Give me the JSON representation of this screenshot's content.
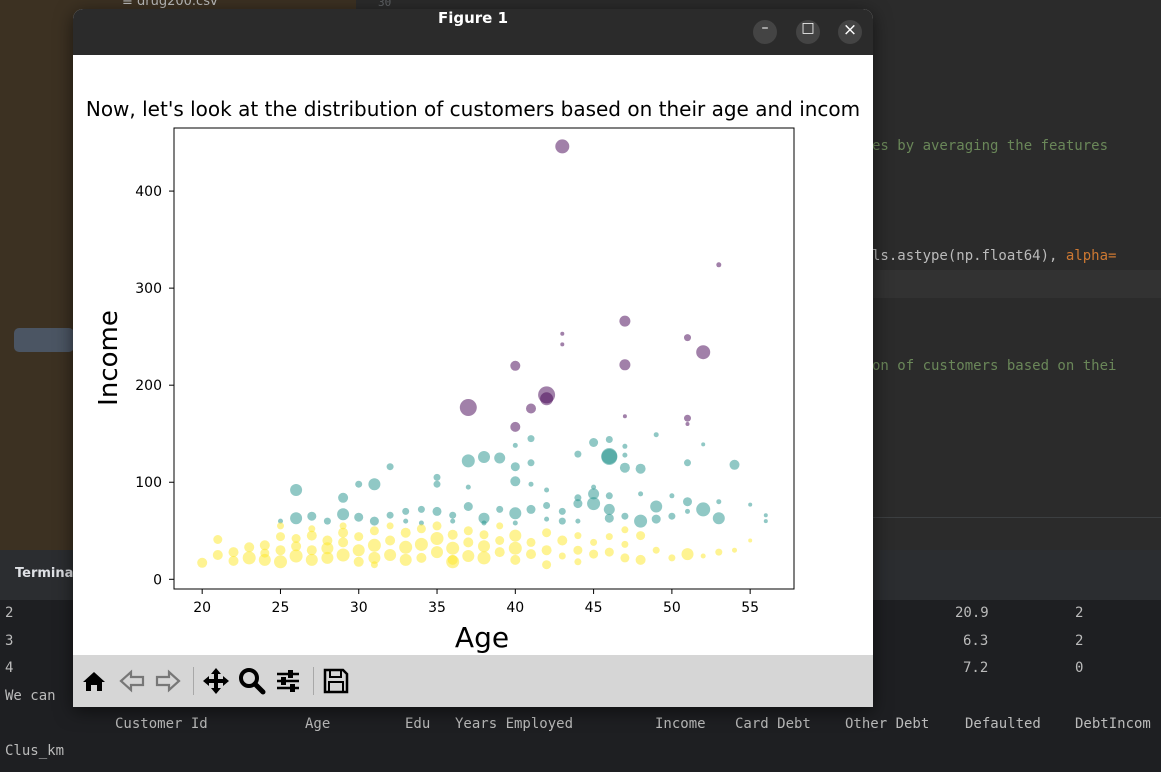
{
  "ide": {
    "project_file": "≡ drug200.csv",
    "gutter_number": "30",
    "code_lines": [
      {
        "text": "es by averaging the features",
        "kind": "comment"
      },
      {
        "text": "ls.astype(np.float64), ",
        "kind": "code",
        "tail": "alpha=",
        "tail_kind": "kw"
      },
      {
        "text": "on of customers based on thei",
        "kind": "comment"
      }
    ],
    "terminal": {
      "tab_label": "Termina",
      "rows": [
        {
          "index": "2",
          "income_debt": "20.9",
          "cluster": "2"
        },
        {
          "index": "3",
          "income_debt": "6.3",
          "cluster": "2"
        },
        {
          "index": "4",
          "income_debt": "7.2",
          "cluster": "0"
        }
      ],
      "note": "We can",
      "columns": [
        "Customer Id",
        "Age",
        "Edu",
        "Years Employed",
        "Income",
        "Card Debt",
        "Other Debt",
        "Defaulted",
        "DebtIncom"
      ],
      "last_line": "Clus_km"
    }
  },
  "window": {
    "title": "Figure 1",
    "minimize_glyph": "–",
    "maximize_glyph": "□",
    "close_glyph": "×"
  },
  "toolbar": {
    "icons": [
      "home-icon",
      "back-arrow-icon",
      "forward-arrow-icon",
      "pan-icon",
      "zoom-icon",
      "configure-subplots-icon",
      "save-icon"
    ]
  },
  "chart_data": {
    "type": "scatter",
    "title": "Now, let's look at the distribution of customers based on their age and incom",
    "xlabel": "Age",
    "ylabel": "Income",
    "xlim": [
      18.2,
      57.8
    ],
    "ylim": [
      -10,
      465
    ],
    "xticks": [
      20,
      25,
      30,
      35,
      40,
      45,
      50,
      55
    ],
    "yticks": [
      0,
      100,
      200,
      300,
      400
    ],
    "grid": false,
    "alpha": 0.5,
    "colors": {
      "0": "#fde725",
      "1": "#21918c",
      "2": "#440154"
    },
    "points": [
      [
        43,
        446,
        2,
        14
      ],
      [
        53,
        324,
        2,
        5
      ],
      [
        47,
        266,
        2,
        11
      ],
      [
        43,
        253,
        2,
        4
      ],
      [
        43,
        242,
        2,
        4
      ],
      [
        51,
        249,
        2,
        7
      ],
      [
        52,
        234,
        2,
        14
      ],
      [
        40,
        220,
        2,
        10
      ],
      [
        47,
        221,
        2,
        11
      ],
      [
        42,
        190,
        2,
        17
      ],
      [
        42,
        186,
        2,
        13
      ],
      [
        41,
        176,
        2,
        10
      ],
      [
        37,
        177,
        2,
        17
      ],
      [
        51,
        166,
        2,
        7
      ],
      [
        47,
        168,
        2,
        4
      ],
      [
        51,
        160,
        2,
        4
      ],
      [
        40,
        157,
        2,
        10
      ],
      [
        49,
        149,
        1,
        5
      ],
      [
        46,
        144,
        1,
        7
      ],
      [
        45,
        141,
        1,
        9
      ],
      [
        47,
        137,
        1,
        5
      ],
      [
        41,
        145,
        1,
        7
      ],
      [
        40,
        138,
        1,
        5
      ],
      [
        52,
        139,
        1,
        4
      ],
      [
        39,
        125,
        1,
        11
      ],
      [
        38,
        126,
        1,
        12
      ],
      [
        37,
        122,
        1,
        13
      ],
      [
        46,
        126,
        1,
        16
      ],
      [
        44,
        129,
        1,
        7
      ],
      [
        47,
        128,
        1,
        5
      ],
      [
        40,
        116,
        1,
        9
      ],
      [
        41,
        120,
        1,
        7
      ],
      [
        47,
        115,
        1,
        10
      ],
      [
        48,
        114,
        1,
        10
      ],
      [
        51,
        120,
        1,
        7
      ],
      [
        54,
        118,
        1,
        10
      ],
      [
        32,
        116,
        1,
        7
      ],
      [
        31,
        98,
        1,
        12
      ],
      [
        26,
        92,
        1,
        12
      ],
      [
        29,
        84,
        1,
        10
      ],
      [
        30,
        98,
        1,
        7
      ],
      [
        35,
        105,
        1,
        7
      ],
      [
        35,
        98,
        1,
        7
      ],
      [
        37,
        95,
        1,
        5
      ],
      [
        40,
        101,
        1,
        10
      ],
      [
        41,
        98,
        1,
        5
      ],
      [
        42,
        92,
        1,
        5
      ],
      [
        44,
        84,
        1,
        7
      ],
      [
        45,
        88,
        1,
        11
      ],
      [
        45,
        95,
        1,
        5
      ],
      [
        46,
        86,
        1,
        7
      ],
      [
        48,
        88,
        1,
        5
      ],
      [
        50,
        86,
        1,
        5
      ],
      [
        51,
        80,
        1,
        9
      ],
      [
        53,
        80,
        1,
        5
      ],
      [
        55,
        77,
        1,
        4
      ],
      [
        52,
        72,
        1,
        14
      ],
      [
        53,
        63,
        1,
        12
      ],
      [
        49,
        75,
        1,
        12
      ],
      [
        48,
        60,
        1,
        13
      ],
      [
        46,
        72,
        1,
        11
      ],
      [
        45,
        78,
        1,
        13
      ],
      [
        44,
        78,
        1,
        9
      ],
      [
        43,
        70,
        1,
        7
      ],
      [
        42,
        76,
        1,
        7
      ],
      [
        41,
        72,
        1,
        9
      ],
      [
        40,
        68,
        1,
        12
      ],
      [
        39,
        72,
        1,
        7
      ],
      [
        38,
        63,
        1,
        11
      ],
      [
        37,
        75,
        1,
        9
      ],
      [
        36,
        66,
        1,
        7
      ],
      [
        35,
        70,
        1,
        9
      ],
      [
        34,
        72,
        1,
        7
      ],
      [
        33,
        70,
        1,
        7
      ],
      [
        32,
        66,
        1,
        7
      ],
      [
        31,
        60,
        1,
        9
      ],
      [
        30,
        64,
        1,
        9
      ],
      [
        29,
        67,
        1,
        12
      ],
      [
        28,
        60,
        1,
        7
      ],
      [
        27,
        65,
        1,
        9
      ],
      [
        26,
        63,
        1,
        12
      ],
      [
        25,
        60,
        1,
        5
      ],
      [
        33,
        60,
        1,
        5
      ],
      [
        34,
        58,
        1,
        5
      ],
      [
        36,
        60,
        1,
        5
      ],
      [
        38,
        58,
        1,
        5
      ],
      [
        40,
        58,
        1,
        5
      ],
      [
        42,
        62,
        1,
        5
      ],
      [
        43,
        60,
        1,
        7
      ],
      [
        44,
        60,
        1,
        5
      ],
      [
        46,
        63,
        1,
        9
      ],
      [
        47,
        65,
        1,
        7
      ],
      [
        49,
        62,
        1,
        9
      ],
      [
        50,
        65,
        1,
        7
      ],
      [
        51,
        70,
        1,
        5
      ],
      [
        56,
        66,
        1,
        4
      ],
      [
        56,
        60,
        1,
        4
      ],
      [
        46,
        127,
        1,
        16
      ],
      [
        20,
        17,
        0,
        10
      ],
      [
        21,
        25,
        0,
        10
      ],
      [
        21,
        41,
        0,
        9
      ],
      [
        22,
        19,
        0,
        10
      ],
      [
        22,
        28,
        0,
        10
      ],
      [
        23,
        22,
        0,
        13
      ],
      [
        23,
        33,
        0,
        10
      ],
      [
        24,
        20,
        0,
        12
      ],
      [
        24,
        35,
        0,
        10
      ],
      [
        24,
        27,
        0,
        9
      ],
      [
        25,
        18,
        0,
        13
      ],
      [
        25,
        30,
        0,
        10
      ],
      [
        25,
        44,
        0,
        9
      ],
      [
        25,
        55,
        0,
        7
      ],
      [
        26,
        24,
        0,
        13
      ],
      [
        26,
        34,
        0,
        10
      ],
      [
        26,
        42,
        0,
        9
      ],
      [
        27,
        20,
        0,
        12
      ],
      [
        27,
        30,
        0,
        10
      ],
      [
        27,
        45,
        0,
        10
      ],
      [
        27,
        52,
        0,
        7
      ],
      [
        28,
        22,
        0,
        12
      ],
      [
        28,
        32,
        0,
        12
      ],
      [
        28,
        40,
        0,
        10
      ],
      [
        29,
        25,
        0,
        13
      ],
      [
        29,
        38,
        0,
        10
      ],
      [
        29,
        48,
        0,
        10
      ],
      [
        29,
        55,
        0,
        7
      ],
      [
        30,
        18,
        0,
        10
      ],
      [
        30,
        30,
        0,
        12
      ],
      [
        30,
        44,
        0,
        9
      ],
      [
        31,
        22,
        0,
        12
      ],
      [
        31,
        35,
        0,
        13
      ],
      [
        31,
        50,
        0,
        9
      ],
      [
        32,
        25,
        0,
        12
      ],
      [
        32,
        40,
        0,
        10
      ],
      [
        32,
        55,
        0,
        7
      ],
      [
        33,
        20,
        0,
        12
      ],
      [
        33,
        33,
        0,
        13
      ],
      [
        33,
        48,
        0,
        10
      ],
      [
        34,
        22,
        0,
        10
      ],
      [
        34,
        36,
        0,
        13
      ],
      [
        34,
        52,
        0,
        9
      ],
      [
        35,
        28,
        0,
        12
      ],
      [
        35,
        42,
        0,
        13
      ],
      [
        35,
        55,
        0,
        9
      ],
      [
        36,
        20,
        0,
        10
      ],
      [
        36,
        32,
        0,
        13
      ],
      [
        36,
        46,
        0,
        10
      ],
      [
        37,
        24,
        0,
        12
      ],
      [
        37,
        38,
        0,
        10
      ],
      [
        37,
        50,
        0,
        9
      ],
      [
        38,
        22,
        0,
        13
      ],
      [
        38,
        34,
        0,
        12
      ],
      [
        38,
        46,
        0,
        9
      ],
      [
        39,
        28,
        0,
        10
      ],
      [
        39,
        40,
        0,
        9
      ],
      [
        40,
        20,
        0,
        10
      ],
      [
        40,
        32,
        0,
        13
      ],
      [
        40,
        45,
        0,
        12
      ],
      [
        41,
        26,
        0,
        10
      ],
      [
        41,
        38,
        0,
        9
      ],
      [
        42,
        30,
        0,
        10
      ],
      [
        42,
        48,
        0,
        9
      ],
      [
        43,
        24,
        0,
        7
      ],
      [
        43,
        40,
        0,
        10
      ],
      [
        44,
        30,
        0,
        9
      ],
      [
        44,
        45,
        0,
        7
      ],
      [
        45,
        26,
        0,
        9
      ],
      [
        45,
        38,
        0,
        7
      ],
      [
        46,
        28,
        0,
        9
      ],
      [
        46,
        44,
        0,
        7
      ],
      [
        47,
        22,
        0,
        9
      ],
      [
        47,
        36,
        0,
        7
      ],
      [
        48,
        20,
        0,
        10
      ],
      [
        48,
        45,
        0,
        9
      ],
      [
        49,
        30,
        0,
        7
      ],
      [
        50,
        22,
        0,
        7
      ],
      [
        51,
        26,
        0,
        12
      ],
      [
        52,
        24,
        0,
        5
      ],
      [
        53,
        28,
        0,
        7
      ],
      [
        54,
        30,
        0,
        5
      ],
      [
        55,
        40,
        0,
        4
      ],
      [
        42,
        15,
        0,
        9
      ],
      [
        36,
        18,
        0,
        13
      ],
      [
        31,
        15,
        0,
        7
      ],
      [
        44,
        18,
        0,
        7
      ],
      [
        47,
        51,
        0,
        7
      ],
      [
        39,
        55,
        0,
        7
      ]
    ]
  }
}
